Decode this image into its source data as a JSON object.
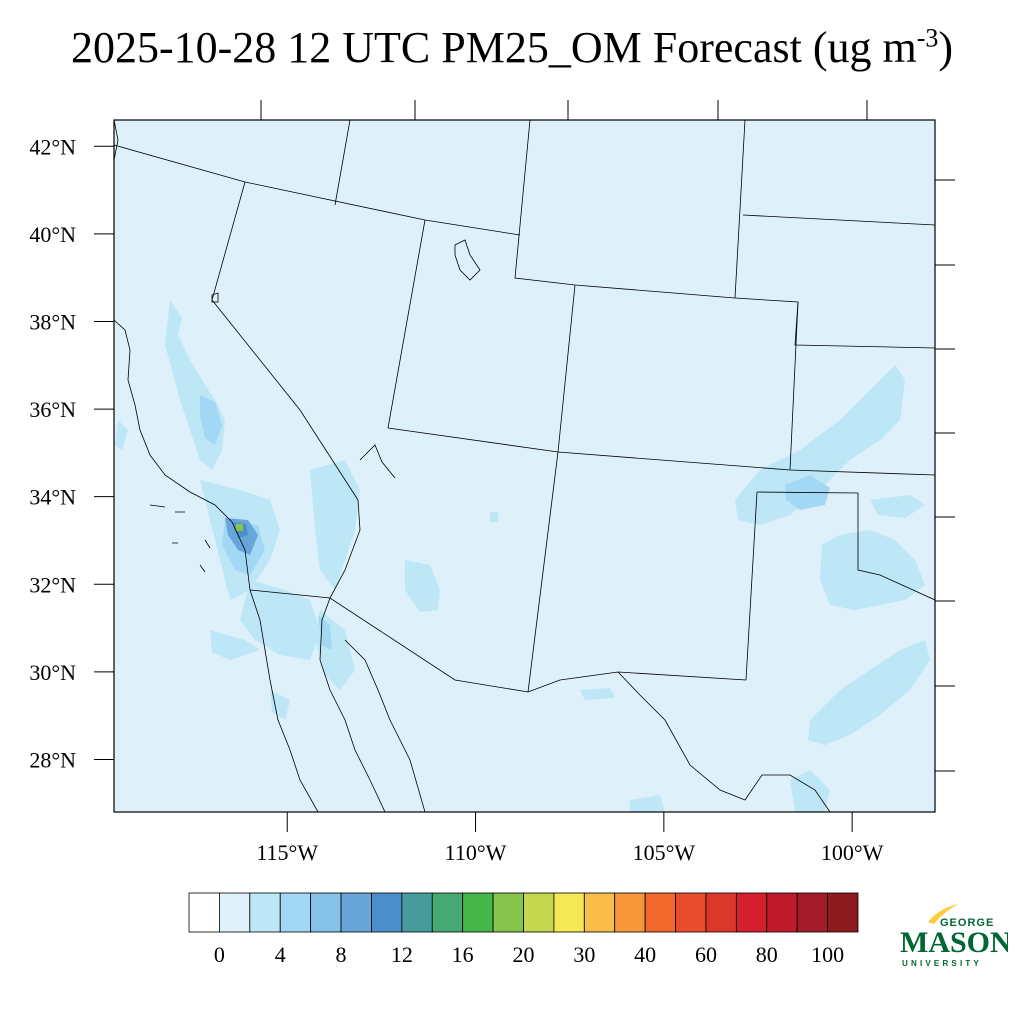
{
  "title": {
    "text": "2025-10-28 12 UTC PM25_OM Forecast (ug m",
    "superscript": "-3",
    "closing": ")"
  },
  "map": {
    "extent": {
      "lon_min": -119.6,
      "lon_max": -97.8,
      "lat_min": 26.8,
      "lat_max": 42.6
    },
    "lat_ticks": [
      {
        "lat": 42,
        "label": "42°N"
      },
      {
        "lat": 40,
        "label": "40°N"
      },
      {
        "lat": 38,
        "label": "38°N"
      },
      {
        "lat": 36,
        "label": "36°N"
      },
      {
        "lat": 34,
        "label": "34°N"
      },
      {
        "lat": 32,
        "label": "32°N"
      },
      {
        "lat": 30,
        "label": "30°N"
      },
      {
        "lat": 28,
        "label": "28°N"
      }
    ],
    "lon_ticks": [
      {
        "lon": -115,
        "label": "115°W"
      },
      {
        "lon": -110,
        "label": "110°W"
      },
      {
        "lon": -105,
        "label": "105°W"
      },
      {
        "lon": -100,
        "label": "100°W"
      }
    ],
    "background_class_color": "#def1fb",
    "concentration_patches": [
      {
        "region": "central-california-valley",
        "level": "2-4"
      },
      {
        "region": "los-angeles-basin",
        "level": "8-16"
      },
      {
        "region": "baja-california-north",
        "level": "4-8"
      },
      {
        "region": "gulf-of-california-coast",
        "level": "4-8"
      },
      {
        "region": "colorado-river-valley",
        "level": "2-4"
      },
      {
        "region": "southern-arizona",
        "level": "2-4"
      },
      {
        "region": "texas-panhandle-oklahoma",
        "level": "2-6"
      },
      {
        "region": "west-texas",
        "level": "2-4"
      },
      {
        "region": "south-texas",
        "level": "2-4"
      }
    ]
  },
  "colorbar": {
    "colors": [
      "#ffffff",
      "#def1fb",
      "#bde6f6",
      "#a2d8f3",
      "#84c2e8",
      "#68a6da",
      "#4a8fca",
      "#469c9b",
      "#46a872",
      "#45b649",
      "#87c44b",
      "#c4d74f",
      "#f5e855",
      "#f8bd4a",
      "#f69839",
      "#f3682c",
      "#e84c2c",
      "#dc372b",
      "#d4202c",
      "#bf1b2c",
      "#a61b2a",
      "#8c1a1f"
    ],
    "labels": [
      "0",
      "4",
      "8",
      "12",
      "16",
      "20",
      "30",
      "40",
      "60",
      "80",
      "100"
    ]
  },
  "logo": {
    "line1": "GEORGE",
    "line2": "MASON",
    "line3": "UNIVERSITY",
    "green": "#006633",
    "gold": "#ffcc33"
  }
}
